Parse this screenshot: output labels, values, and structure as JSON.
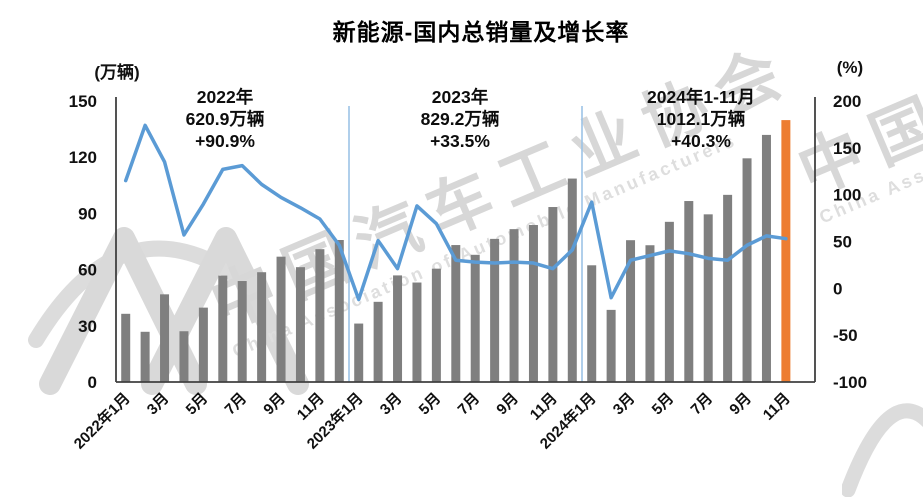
{
  "title": "新能源-国内总销量及增长率",
  "annotations": [
    {
      "line1": "2022年",
      "line2": "620.9万辆",
      "line3": "+90.9%"
    },
    {
      "line1": "2023年",
      "line2": "829.2万辆",
      "line3": "+33.5%"
    },
    {
      "line1": "2024年1-11月",
      "line2": "1012.1万辆",
      "line3": "+40.3%"
    }
  ],
  "watermark": {
    "cn": "中国汽车工业协会",
    "en": "China Association of Automobile Manufacturers"
  },
  "chart_data": {
    "type": "bar+line",
    "title": "新能源-国内总销量及增长率",
    "left_axis": {
      "label": "(万辆)",
      "ticks": [
        0,
        30,
        60,
        90,
        120,
        150
      ],
      "range": [
        0,
        150
      ]
    },
    "right_axis": {
      "label": "(%)",
      "ticks": [
        -100,
        -50,
        0,
        50,
        100,
        150,
        200
      ],
      "range": [
        -100,
        200
      ]
    },
    "x_tick_labels": [
      "2022年1月",
      "3月",
      "5月",
      "7月",
      "9月",
      "11月",
      "2023年1月",
      "3月",
      "5月",
      "7月",
      "9月",
      "11月",
      "2024年1月",
      "3月",
      "5月",
      "7月",
      "9月",
      "11月"
    ],
    "categories": [
      "2022年1月",
      "2022年2月",
      "2022年3月",
      "2022年4月",
      "2022年5月",
      "2022年6月",
      "2022年7月",
      "2022年8月",
      "2022年9月",
      "2022年10月",
      "2022年11月",
      "2022年12月",
      "2023年1月",
      "2023年2月",
      "2023年3月",
      "2023年4月",
      "2023年5月",
      "2023年6月",
      "2023年7月",
      "2023年8月",
      "2023年9月",
      "2023年10月",
      "2023年11月",
      "2023年12月",
      "2024年1月",
      "2024年2月",
      "2024年3月",
      "2024年4月",
      "2024年5月",
      "2024年6月",
      "2024年7月",
      "2024年8月",
      "2024年9月",
      "2024年10月",
      "2024年11月"
    ],
    "series": [
      {
        "name": "国内总销量",
        "type": "bar",
        "axis": "left",
        "unit": "万辆",
        "values": [
          36.4,
          26.8,
          46.8,
          27.1,
          39.7,
          56.8,
          53.9,
          58.6,
          66.9,
          61.3,
          70.9,
          75.8,
          31.2,
          42.8,
          56.9,
          53.1,
          60.5,
          73.1,
          67.9,
          76.4,
          81.6,
          83.8,
          93.4,
          108.6,
          62.3,
          38.5,
          75.7,
          73.0,
          85.5,
          96.6,
          89.5,
          99.9,
          119.4,
          131.9,
          139.8
        ]
      },
      {
        "name": "增长率",
        "type": "line",
        "axis": "right",
        "unit": "%",
        "values": [
          115,
          174,
          135,
          57,
          90,
          127,
          131,
          111,
          97,
          86,
          74,
          46,
          -12,
          51,
          21,
          88,
          69,
          30,
          28,
          27,
          28,
          27,
          21,
          41,
          92,
          -10,
          30,
          35,
          40,
          37,
          32,
          30,
          46,
          56,
          53
        ]
      }
    ],
    "highlight": {
      "category": "2024年11月",
      "note": "last bar drawn in orange"
    },
    "separators_after_index": [
      11,
      23
    ],
    "slots": 36,
    "legend": "none",
    "grid": "off",
    "colors": {
      "bar": "#7f7f7f",
      "bar_highlight": "#ED7D31",
      "line": "#5B9BD5",
      "separator": "#9DC3E6",
      "axis": "#404040",
      "text": "#111111",
      "watermark": "#d7d7d7"
    }
  }
}
